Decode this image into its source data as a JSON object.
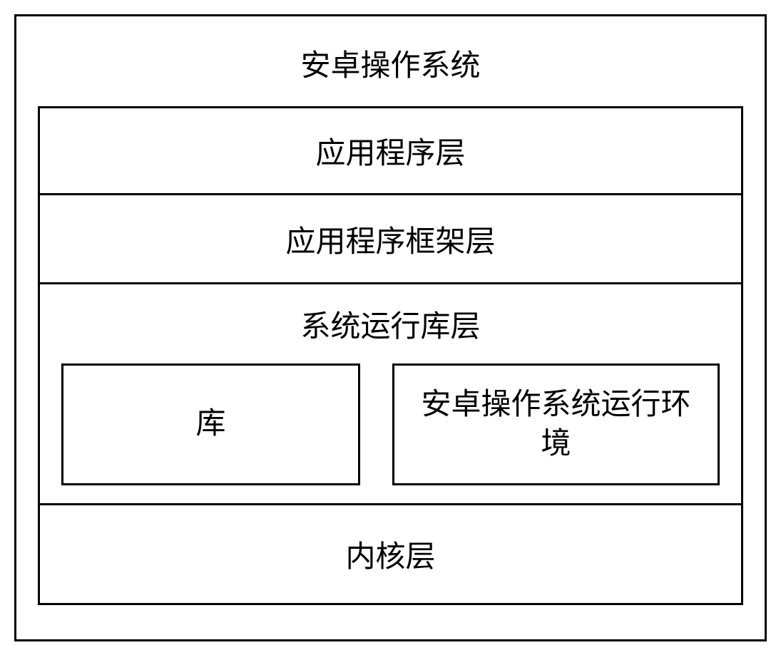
{
  "diagram": {
    "type": "layered-architecture",
    "title": "安卓操作系统",
    "border_color": "#000000",
    "border_width": 3,
    "background_color": "#ffffff",
    "font_family": "KaiTi",
    "font_size": 42,
    "layers": {
      "application": {
        "label": "应用程序层"
      },
      "framework": {
        "label": "应用程序框架层"
      },
      "runtime": {
        "label": "系统运行库层",
        "sublayers": {
          "library": {
            "label": "库"
          },
          "android_runtime": {
            "label": "安卓操作系统运行环境"
          }
        }
      },
      "kernel": {
        "label": "内核层"
      }
    }
  }
}
